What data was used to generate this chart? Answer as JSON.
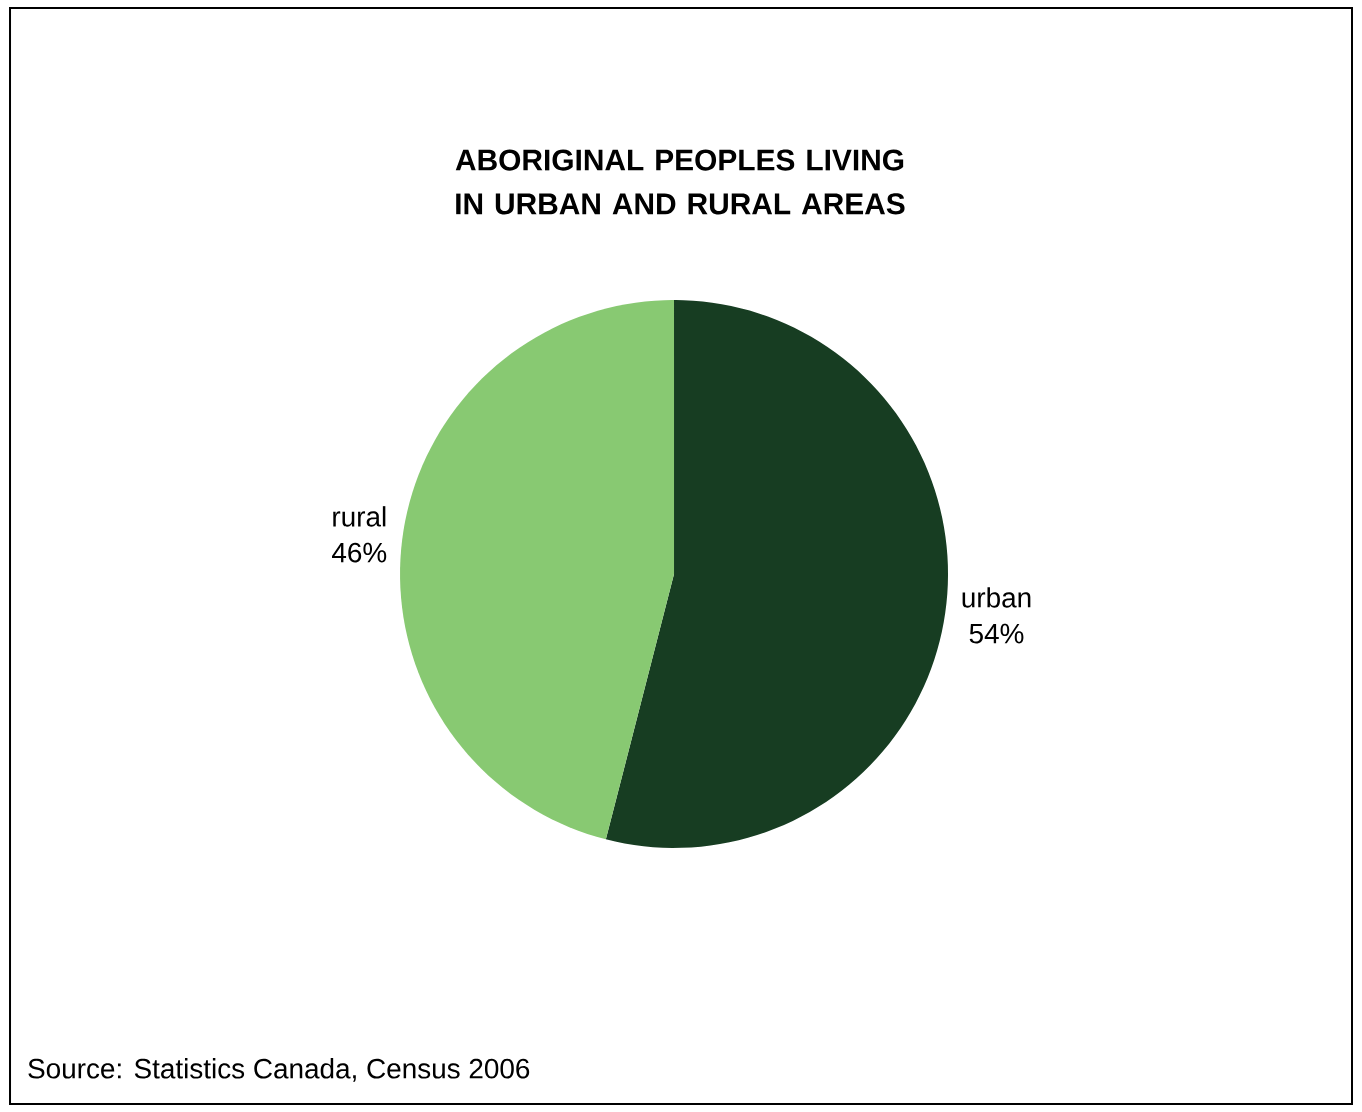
{
  "chart_data": {
    "type": "pie",
    "title": "ABORIGINAL PEOPLES LIVING IN URBAN AND RURAL AREAS",
    "categories": [
      "urban",
      "rural"
    ],
    "values": [
      54,
      46
    ],
    "value_labels": [
      "54%",
      "46%"
    ],
    "colors": [
      "#173d22",
      "#88c972"
    ],
    "annotations": [
      "Source: Statistics Canada, Census 2006"
    ]
  }
}
